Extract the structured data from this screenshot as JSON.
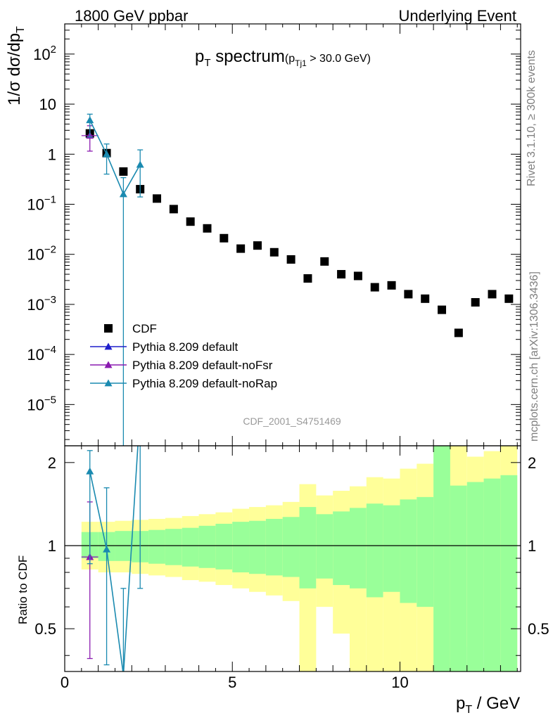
{
  "header": {
    "left": "1800 GeV ppbar",
    "right": "Underlying Event"
  },
  "plot": {
    "title": "p",
    "title_sub": "T",
    "title_rest": " spectrum",
    "cut_open": "(p",
    "cut_sub": "Tj1",
    "cut_rest": " > 30.0 GeV)",
    "analysis_id": "CDF_2001_S4751469",
    "side_right_top": "Rivet 3.1.10, ≥ 300k events",
    "side_right_bottom": "mcplots.cern.ch [arXiv:1306.3436]"
  },
  "axes": {
    "ylabel_main": "1/σ dσ/dp",
    "ylabel_main_sub": "T",
    "ylabel_ratio": "Ratio to CDF",
    "xlabel": "p",
    "xlabel_sub": "T",
    "xlabel_rest": " / GeV"
  },
  "legend": [
    {
      "label": "CDF",
      "marker": "square",
      "color": "#000000"
    },
    {
      "label": "Pythia 8.209 default",
      "marker": "triangle",
      "color": "#1f1fcc"
    },
    {
      "label": "Pythia 8.209 default-noFsr",
      "marker": "triangle",
      "color": "#8a1ab0"
    },
    {
      "label": "Pythia 8.209 default-noRap",
      "marker": "triangle",
      "color": "#1a8ab0"
    }
  ],
  "chart_data": {
    "type": "scatter",
    "xlim": [
      0,
      13.6
    ],
    "ylim_main": [
      1.5e-06,
      400
    ],
    "ylog_main": true,
    "ylim_ratio": [
      0.35,
      2.3
    ],
    "ylog_ratio": true,
    "x_ticks": [
      0,
      5,
      10
    ],
    "y_ticks_main": [
      "10^-5",
      "10^-4",
      "10^-3",
      "10^-2",
      "10^-1",
      "1",
      "10",
      "10^2"
    ],
    "y_ticks_ratio": [
      0.5,
      1,
      2
    ],
    "series": [
      {
        "name": "CDF",
        "color": "#000000",
        "x": [
          0.75,
          1.25,
          1.75,
          2.25,
          2.75,
          3.25,
          3.75,
          4.25,
          4.75,
          5.25,
          5.75,
          6.25,
          6.75,
          7.25,
          7.75,
          8.25,
          8.75,
          9.25,
          9.75,
          10.25,
          10.75,
          11.25,
          11.75,
          12.25,
          12.75,
          13.25
        ],
        "y": [
          2.6,
          1.05,
          0.45,
          0.2,
          0.13,
          0.08,
          0.045,
          0.033,
          0.021,
          0.013,
          0.015,
          0.011,
          0.0079,
          0.0033,
          0.0072,
          0.004,
          0.0037,
          0.0022,
          0.0024,
          0.0016,
          0.0013,
          0.00078,
          0.00027,
          0.0011,
          0.0016,
          0.0013
        ]
      },
      {
        "name": "Pythia 8.209 default-noFsr",
        "color": "#8a1ab0",
        "x": [
          0.75
        ],
        "y": [
          2.35
        ],
        "yerr_low": [
          1.2
        ],
        "yerr_high": [
          1.35
        ],
        "xerr": [
          0.25
        ]
      },
      {
        "name": "Pythia 8.209 default-noRap",
        "color": "#1a8ab0",
        "x": [
          0.75,
          1.25,
          1.75,
          2.25
        ],
        "y": [
          4.8,
          1.0,
          0.16,
          0.62
        ],
        "yerr_low": [
          2.6,
          0.6,
          0.16,
          0.48
        ],
        "yerr_high": [
          1.5,
          0.6,
          0.18,
          0.6
        ]
      }
    ],
    "ratio": {
      "band_edges": [
        0.5,
        1.0,
        1.5,
        2.0,
        2.5,
        3.0,
        3.5,
        4.0,
        4.5,
        5.0,
        5.5,
        6.0,
        6.5,
        7.0,
        7.5,
        8.0,
        8.5,
        9.0,
        9.5,
        10.0,
        10.5,
        11.0,
        11.5,
        12.0,
        12.5,
        13.0,
        13.5
      ],
      "green_low": [
        0.9,
        0.88,
        0.88,
        0.87,
        0.86,
        0.85,
        0.84,
        0.83,
        0.82,
        0.8,
        0.79,
        0.78,
        0.77,
        0.7,
        0.76,
        0.72,
        0.7,
        0.65,
        0.68,
        0.62,
        0.6,
        0.3,
        0.3,
        0.3,
        0.3,
        0.3
      ],
      "green_high": [
        1.12,
        1.12,
        1.13,
        1.13,
        1.14,
        1.15,
        1.16,
        1.18,
        1.2,
        1.22,
        1.23,
        1.25,
        1.27,
        1.38,
        1.3,
        1.33,
        1.37,
        1.42,
        1.4,
        1.47,
        1.5,
        2.6,
        1.65,
        1.7,
        1.75,
        1.8
      ],
      "yellow_low": [
        0.82,
        0.8,
        0.8,
        0.79,
        0.78,
        0.77,
        0.75,
        0.74,
        0.72,
        0.7,
        0.68,
        0.66,
        0.63,
        0.3,
        0.6,
        0.48,
        0.3,
        0.3,
        0.3,
        0.3,
        0.3,
        0.3,
        0.3,
        0.43,
        0.42,
        0.3
      ],
      "yellow_high": [
        1.22,
        1.22,
        1.23,
        1.24,
        1.25,
        1.26,
        1.28,
        1.3,
        1.32,
        1.36,
        1.38,
        1.4,
        1.44,
        1.67,
        1.52,
        1.58,
        1.64,
        1.77,
        1.75,
        1.9,
        1.98,
        2.35,
        2.3,
        2.1,
        2.2,
        2.4
      ],
      "series": [
        {
          "name": "Pythia 8.209 default-noFsr",
          "color": "#8a1ab0",
          "x": [
            0.75
          ],
          "y": [
            0.91
          ],
          "yerr_low": [
            0.52
          ],
          "yerr_high": [
            0.53
          ],
          "xerr": [
            0.25
          ]
        },
        {
          "name": "Pythia 8.209 default-noRap",
          "color": "#1a8ab0",
          "x": [
            0.75,
            1.25,
            1.75,
            2.25
          ],
          "y": [
            1.86,
            0.97,
            0.34,
            3.1
          ],
          "yerr_low": [
            1.0,
            0.6,
            0.34,
            2.4
          ],
          "yerr_high": [
            0.35,
            0.65,
            0.36,
            3.0
          ]
        }
      ]
    }
  }
}
